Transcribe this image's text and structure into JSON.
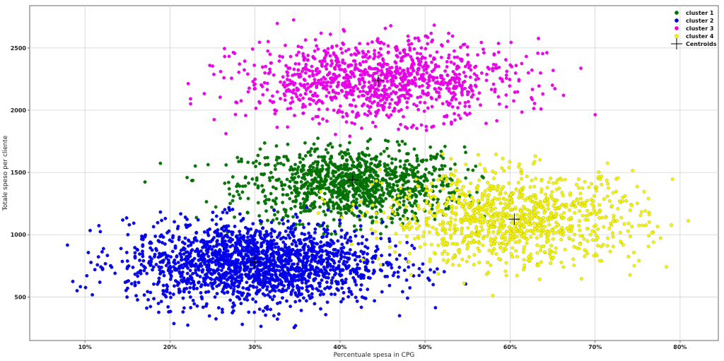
{
  "chart_data": {
    "type": "scatter",
    "title": "",
    "xlabel": "Percentuale spesa in CPG",
    "ylabel": "Totale speso per cliente",
    "xlim": [
      0.035,
      0.845
    ],
    "ylim": [
      150,
      2840
    ],
    "x_ticks": [
      {
        "value": 0.1,
        "label": "10%"
      },
      {
        "value": 0.2,
        "label": "20%"
      },
      {
        "value": 0.3,
        "label": "30%"
      },
      {
        "value": 0.4,
        "label": "40%"
      },
      {
        "value": 0.5,
        "label": "50%"
      },
      {
        "value": 0.6,
        "label": "60%"
      },
      {
        "value": 0.7,
        "label": "70%"
      },
      {
        "value": 0.8,
        "label": "80%"
      }
    ],
    "y_ticks": [
      {
        "value": 500,
        "label": "500"
      },
      {
        "value": 1000,
        "label": "1000"
      },
      {
        "value": 1500,
        "label": "1500"
      },
      {
        "value": 2000,
        "label": "2000"
      },
      {
        "value": 2500,
        "label": "2500"
      }
    ],
    "grid": true,
    "legend_position": "top-right",
    "series": [
      {
        "name": "cluster 1",
        "color": "#007000",
        "center": [
          0.415,
          1400
        ],
        "spread": [
          0.065,
          150
        ],
        "count": 1100,
        "x_range": [
          0.17,
          0.57
        ],
        "y_range": [
          1000,
          1830
        ]
      },
      {
        "name": "cluster 2",
        "color": "#0000e6",
        "center": [
          0.3,
          770
        ],
        "spread": [
          0.075,
          165
        ],
        "count": 1900,
        "x_range": [
          0.078,
          0.55
        ],
        "y_range": [
          185,
          1230
        ]
      },
      {
        "name": "cluster 3",
        "color": "#e600e6",
        "center": [
          0.445,
          2240
        ],
        "spread": [
          0.08,
          160
        ],
        "count": 1100,
        "x_range": [
          0.21,
          0.74
        ],
        "y_range": [
          1780,
          2740
        ]
      },
      {
        "name": "cluster 4",
        "color": "#f5f500",
        "center": [
          0.605,
          1125
        ],
        "spread": [
          0.075,
          185
        ],
        "count": 1050,
        "x_range": [
          0.36,
          0.81
        ],
        "y_range": [
          510,
          1680
        ]
      }
    ],
    "centroids": {
      "name": "Centroids",
      "color": "#000000",
      "points": [
        [
          0.415,
          1440
        ],
        [
          0.3,
          780
        ],
        [
          0.445,
          2240
        ],
        [
          0.605,
          1125
        ]
      ]
    }
  }
}
